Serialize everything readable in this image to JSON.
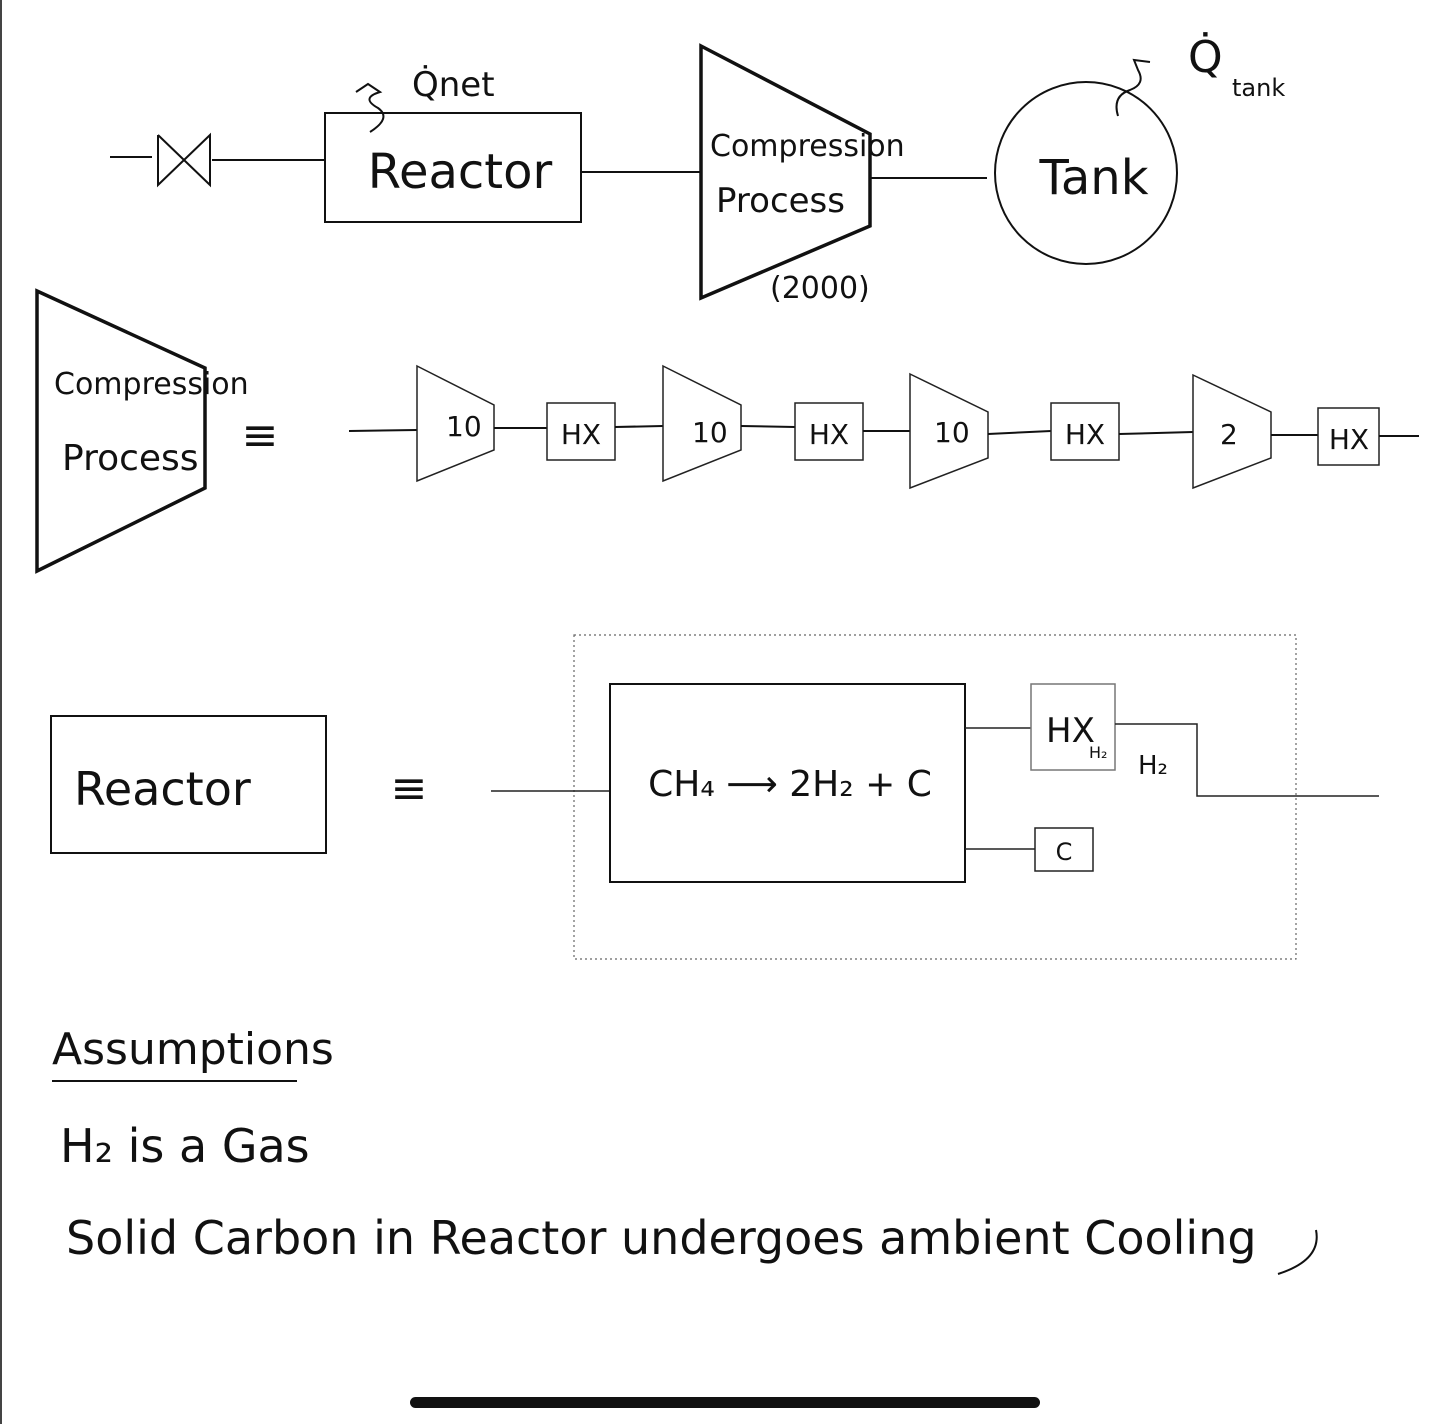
{
  "top_flow": {
    "reactor_heat_label": "Q̇net",
    "reactor_label": "Reactor",
    "compression_label_line1": "Compression",
    "compression_label_line2": "Process",
    "compression_pressure": "(2000)",
    "tank_label": "Tank",
    "tank_heat_label_q": "Q̇",
    "tank_heat_label_sub": "tank"
  },
  "compression_detail": {
    "block_label_line1": "Compression",
    "block_label_line2": "Process",
    "equiv_symbol": "≡",
    "stages": [
      {
        "ratio": "10",
        "hx": "HX"
      },
      {
        "ratio": "10",
        "hx": "HX"
      },
      {
        "ratio": "10",
        "hx": "HX"
      },
      {
        "ratio": "2",
        "hx": "HX"
      }
    ]
  },
  "reactor_detail": {
    "block_label": "Reactor",
    "equiv_symbol": "≡",
    "reaction": "CH₄ ⟶ 2H₂ + C",
    "hx_label": "HX",
    "hx_sub": "H₂",
    "h2_stream_label": "H₂",
    "carbon_label": "C"
  },
  "assumptions": {
    "heading": "Assumptions",
    "items": [
      "H₂ is a Gas",
      "Solid Carbon in Reactor undergoes ambient Cooling"
    ]
  }
}
